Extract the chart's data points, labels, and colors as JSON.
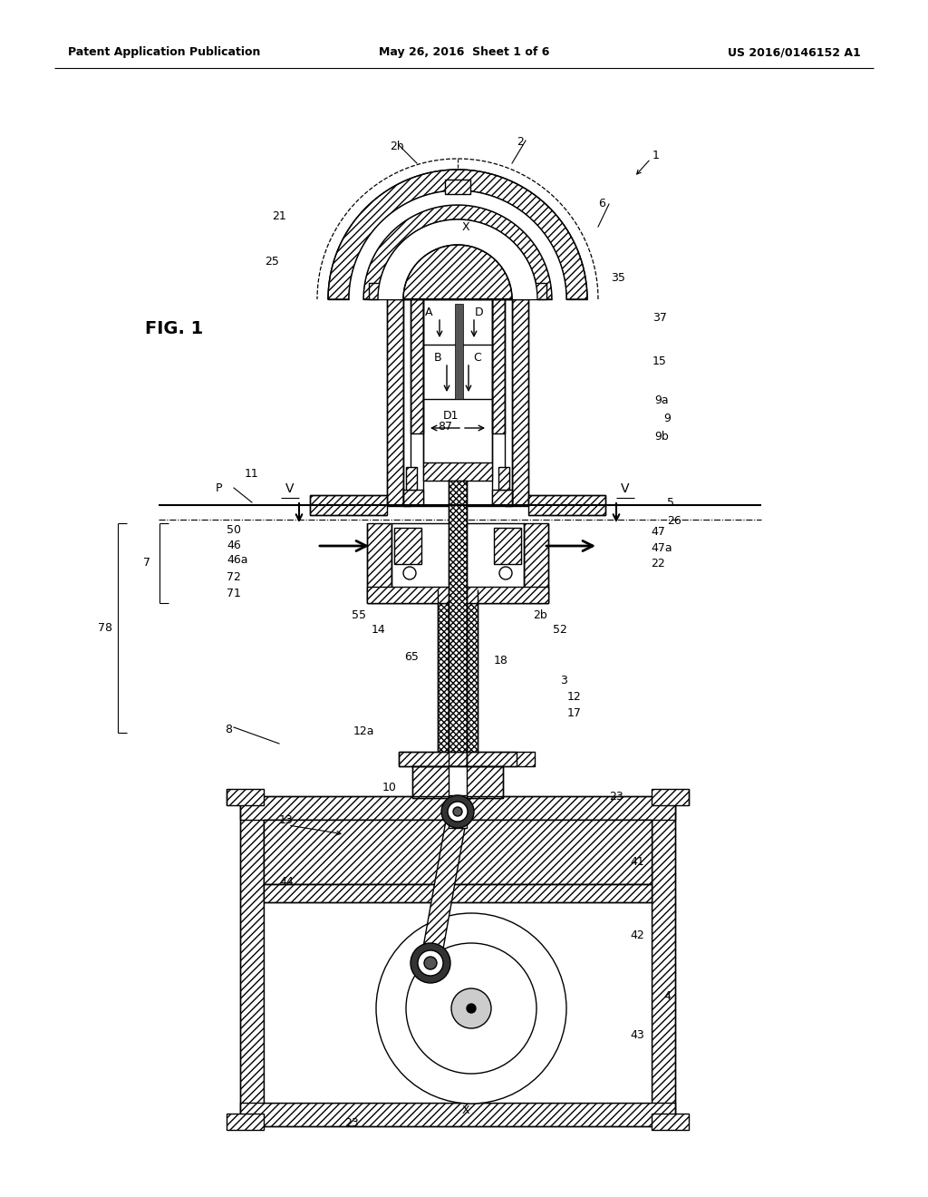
{
  "header_left": "Patent Application Publication",
  "header_mid": "May 26, 2016  Sheet 1 of 6",
  "header_right": "US 2016/0146152 A1",
  "fig_label": "FIG. 1",
  "bg_color": "#ffffff",
  "line_color": "#000000",
  "fig_width": 10.24,
  "fig_height": 13.2
}
